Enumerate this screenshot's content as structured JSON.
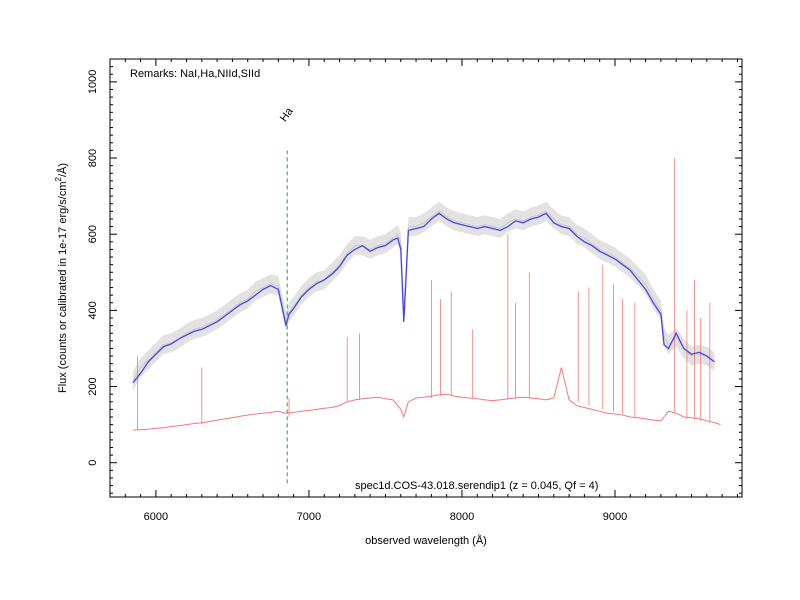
{
  "chart_data": {
    "type": "line",
    "title": "",
    "remarks": "Remarks: NaI,Ha,NIId,SIId",
    "object_label": "spec1d.COS-43.018.serendip1 (z = 0.045, Qf = 4)",
    "xlabel": "observed wavelength (Å)",
    "ylabel": "Flux (counts or calibrated in 1e-17 erg/s/cm",
    "ylabel_sup": "2",
    "ylabel_tail": "/Å)",
    "xlim": [
      5700,
      9830
    ],
    "ylim": [
      -90,
      1060
    ],
    "xticks": [
      6000,
      7000,
      8000,
      9000
    ],
    "yticks": [
      0,
      200,
      400,
      600,
      800,
      1000
    ],
    "grid": false,
    "line_marker": {
      "label": "Ha",
      "x": 6858,
      "y_top": 820,
      "y_bottom": -55,
      "color": "#22aa22"
    },
    "colors": {
      "raw": "#c8c8c8",
      "smoothed": "#4444ee",
      "error": "#f07a7a"
    },
    "series": [
      {
        "role": "raw",
        "x": [
          5850,
          5900,
          5950,
          6000,
          6050,
          6100,
          6150,
          6200,
          6250,
          6300,
          6350,
          6400,
          6450,
          6500,
          6550,
          6600,
          6650,
          6700,
          6750,
          6800,
          6850,
          6870,
          6900,
          6950,
          7000,
          7050,
          7100,
          7150,
          7200,
          7250,
          7300,
          7350,
          7400,
          7450,
          7500,
          7550,
          7580,
          7600,
          7620,
          7650,
          7700,
          7750,
          7800,
          7850,
          7900,
          7950,
          8000,
          8050,
          8100,
          8150,
          8200,
          8250,
          8300,
          8350,
          8400,
          8450,
          8500,
          8550,
          8600,
          8650,
          8700,
          8750,
          8800,
          8850,
          8900,
          8950,
          9000,
          9050,
          9100,
          9150,
          9200,
          9250,
          9300,
          9320,
          9350,
          9400,
          9450,
          9500,
          9550,
          9600,
          9650
        ],
        "y": [
          215,
          250,
          270,
          290,
          310,
          315,
          325,
          340,
          350,
          355,
          365,
          375,
          390,
          405,
          420,
          430,
          450,
          460,
          470,
          465,
          370,
          395,
          410,
          440,
          460,
          475,
          480,
          500,
          520,
          550,
          570,
          570,
          560,
          570,
          575,
          590,
          600,
          580,
          390,
          620,
          620,
          630,
          645,
          660,
          645,
          635,
          630,
          625,
          620,
          625,
          620,
          615,
          630,
          640,
          635,
          645,
          650,
          660,
          640,
          625,
          620,
          600,
          590,
          575,
          560,
          550,
          540,
          525,
          510,
          490,
          470,
          430,
          400,
          330,
          310,
          330,
          300,
          280,
          285,
          280,
          265
        ]
      },
      {
        "role": "smoothed",
        "x": [
          5850,
          5900,
          5950,
          6000,
          6050,
          6100,
          6150,
          6200,
          6250,
          6300,
          6350,
          6400,
          6450,
          6500,
          6550,
          6600,
          6650,
          6700,
          6750,
          6800,
          6850,
          6870,
          6900,
          6950,
          7000,
          7050,
          7100,
          7150,
          7200,
          7250,
          7300,
          7350,
          7400,
          7450,
          7500,
          7550,
          7580,
          7600,
          7620,
          7650,
          7700,
          7750,
          7800,
          7850,
          7900,
          7950,
          8000,
          8050,
          8100,
          8150,
          8200,
          8250,
          8300,
          8350,
          8400,
          8450,
          8500,
          8550,
          8600,
          8650,
          8700,
          8750,
          8800,
          8850,
          8900,
          8950,
          9000,
          9050,
          9100,
          9150,
          9200,
          9250,
          9300,
          9320,
          9350,
          9400,
          9450,
          9500,
          9550,
          9600,
          9650
        ],
        "y": [
          210,
          235,
          265,
          285,
          305,
          312,
          325,
          335,
          345,
          350,
          360,
          370,
          385,
          400,
          415,
          425,
          440,
          455,
          465,
          455,
          360,
          390,
          405,
          435,
          455,
          470,
          480,
          495,
          515,
          545,
          560,
          570,
          555,
          565,
          570,
          585,
          590,
          560,
          370,
          610,
          615,
          620,
          640,
          655,
          640,
          630,
          625,
          620,
          615,
          620,
          615,
          610,
          620,
          635,
          630,
          640,
          645,
          655,
          630,
          620,
          615,
          595,
          580,
          570,
          555,
          545,
          535,
          520,
          505,
          480,
          455,
          420,
          390,
          310,
          300,
          340,
          300,
          285,
          290,
          280,
          265
        ]
      },
      {
        "role": "error",
        "x": [
          5850,
          5900,
          5950,
          6000,
          6050,
          6100,
          6150,
          6200,
          6250,
          6300,
          6350,
          6400,
          6450,
          6500,
          6550,
          6600,
          6650,
          6700,
          6750,
          6800,
          6850,
          6900,
          6950,
          7000,
          7050,
          7100,
          7150,
          7200,
          7250,
          7300,
          7350,
          7400,
          7450,
          7500,
          7550,
          7600,
          7620,
          7650,
          7700,
          7750,
          7800,
          7850,
          7900,
          7950,
          8000,
          8050,
          8100,
          8150,
          8200,
          8250,
          8300,
          8350,
          8400,
          8450,
          8500,
          8550,
          8600,
          8650,
          8700,
          8750,
          8800,
          8850,
          8900,
          8950,
          9000,
          9050,
          9100,
          9150,
          9200,
          9250,
          9300,
          9350,
          9400,
          9450,
          9500,
          9550,
          9600,
          9650,
          9690
        ],
        "y": [
          85,
          87,
          88,
          90,
          92,
          95,
          97,
          100,
          103,
          105,
          108,
          112,
          115,
          118,
          122,
          125,
          128,
          130,
          132,
          135,
          130,
          132,
          135,
          137,
          140,
          143,
          145,
          150,
          160,
          165,
          168,
          170,
          172,
          168,
          165,
          140,
          120,
          160,
          170,
          172,
          175,
          178,
          180,
          175,
          172,
          170,
          168,
          165,
          163,
          165,
          168,
          170,
          172,
          170,
          168,
          165,
          170,
          250,
          165,
          150,
          145,
          140,
          135,
          130,
          128,
          125,
          120,
          118,
          115,
          112,
          110,
          135,
          130,
          120,
          118,
          115,
          110,
          105,
          100
        ]
      }
    ],
    "spikes": [
      {
        "x": 5880,
        "top": 280,
        "bottom": 85
      },
      {
        "x": 6300,
        "top": 250,
        "bottom": 100
      },
      {
        "x": 6870,
        "top": 170,
        "bottom": 120
      },
      {
        "x": 7250,
        "top": 330,
        "bottom": 160
      },
      {
        "x": 7330,
        "top": 340,
        "bottom": 165
      },
      {
        "x": 7800,
        "top": 480,
        "bottom": 170
      },
      {
        "x": 7860,
        "top": 430,
        "bottom": 175
      },
      {
        "x": 7930,
        "top": 450,
        "bottom": 175
      },
      {
        "x": 8070,
        "top": 350,
        "bottom": 170
      },
      {
        "x": 8300,
        "top": 600,
        "bottom": 165
      },
      {
        "x": 8350,
        "top": 420,
        "bottom": 170
      },
      {
        "x": 8440,
        "top": 500,
        "bottom": 170
      },
      {
        "x": 8760,
        "top": 450,
        "bottom": 160
      },
      {
        "x": 8830,
        "top": 460,
        "bottom": 150
      },
      {
        "x": 8920,
        "top": 520,
        "bottom": 140
      },
      {
        "x": 8990,
        "top": 470,
        "bottom": 135
      },
      {
        "x": 9050,
        "top": 430,
        "bottom": 128
      },
      {
        "x": 9130,
        "top": 420,
        "bottom": 120
      },
      {
        "x": 9390,
        "top": 800,
        "bottom": 130
      },
      {
        "x": 9470,
        "top": 400,
        "bottom": 115
      },
      {
        "x": 9520,
        "top": 480,
        "bottom": 115
      },
      {
        "x": 9560,
        "top": 380,
        "bottom": 110
      },
      {
        "x": 9620,
        "top": 420,
        "bottom": 105
      }
    ]
  }
}
